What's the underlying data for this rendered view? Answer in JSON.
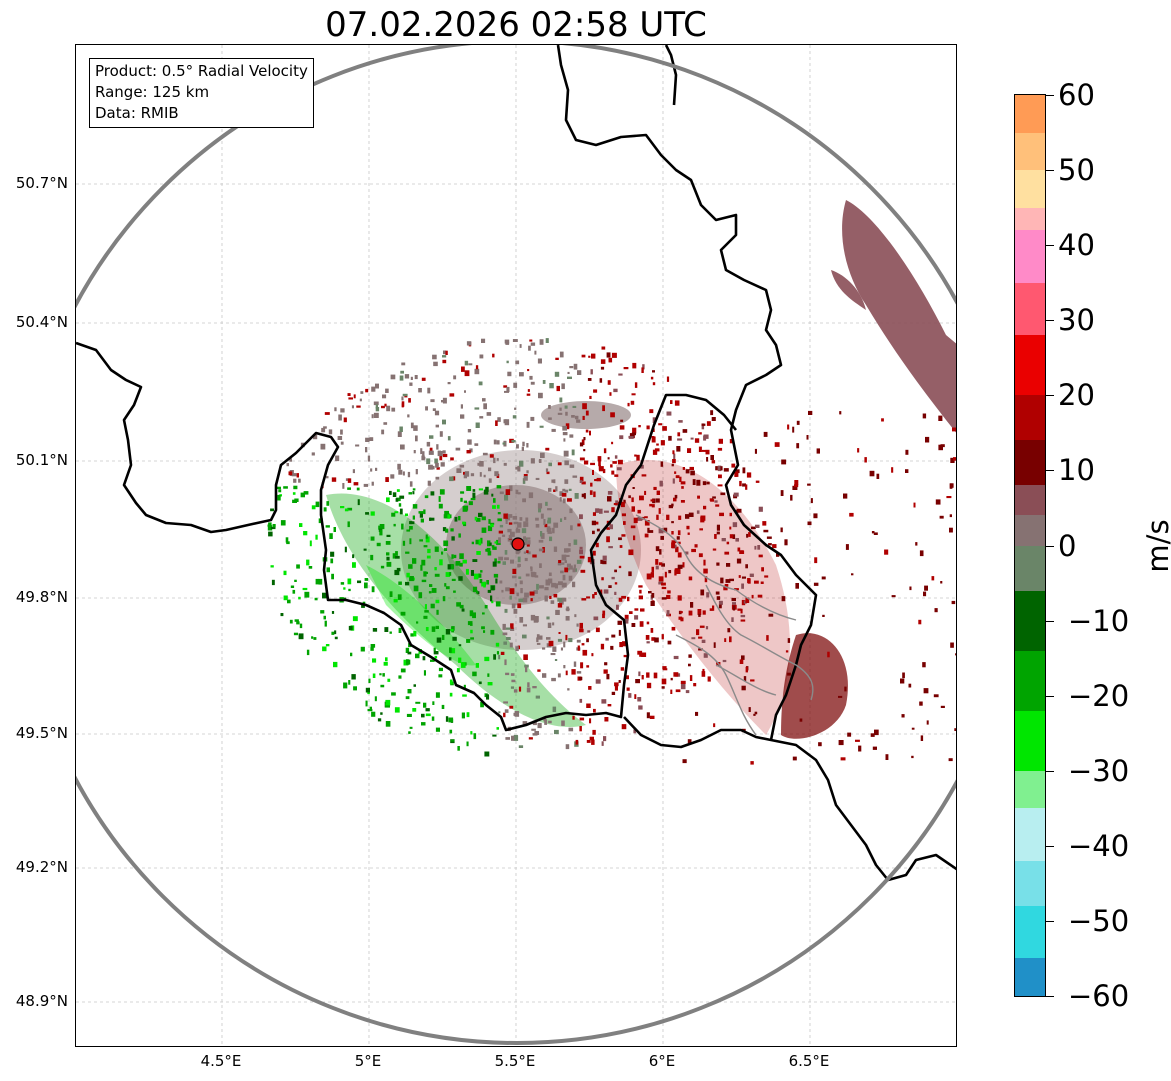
{
  "title": "07.02.2026 02:58 UTC",
  "info": {
    "product": "Product: 0.5° Radial Velocity",
    "range": "Range: 125 km",
    "source": "Data: RMIB"
  },
  "map": {
    "lat_ticks": [
      "50.7°N",
      "50.4°N",
      "50.1°N",
      "49.8°N",
      "49.5°N",
      "49.2°N",
      "48.9°N"
    ],
    "lon_ticks": [
      "4.5°E",
      "5°E",
      "5.5°E",
      "6°E",
      "6.5°E"
    ],
    "radar_site_color": "#e01010",
    "range_ring_color": "#808080",
    "border_color": "#000000"
  },
  "colorbar": {
    "unit": "m/s",
    "ticks": [
      "60",
      "50",
      "40",
      "30",
      "20",
      "10",
      "0",
      "−10",
      "−20",
      "−30",
      "−40",
      "−50",
      "−60"
    ],
    "range": [
      -60,
      60
    ],
    "colors": [
      {
        "from": 55,
        "to": 60,
        "color": "#ff9b55"
      },
      {
        "from": 50,
        "to": 55,
        "color": "#ffc07a"
      },
      {
        "from": 45,
        "to": 50,
        "color": "#ffe0a0"
      },
      {
        "from": 42,
        "to": 45,
        "color": "#ffb6b6"
      },
      {
        "from": 35,
        "to": 42,
        "color": "#ff8ac8"
      },
      {
        "from": 28,
        "to": 35,
        "color": "#ff5870"
      },
      {
        "from": 20,
        "to": 28,
        "color": "#ea0000"
      },
      {
        "from": 14,
        "to": 20,
        "color": "#b00000"
      },
      {
        "from": 8,
        "to": 14,
        "color": "#780000"
      },
      {
        "from": 4,
        "to": 8,
        "color": "#8a4e56"
      },
      {
        "from": 0,
        "to": 4,
        "color": "#867272"
      },
      {
        "from": -6,
        "to": 0,
        "color": "#6a8568"
      },
      {
        "from": -14,
        "to": -6,
        "color": "#006400"
      },
      {
        "from": -22,
        "to": -14,
        "color": "#00a400"
      },
      {
        "from": -30,
        "to": -22,
        "color": "#00e600"
      },
      {
        "from": -35,
        "to": -30,
        "color": "#80f090"
      },
      {
        "from": -42,
        "to": -35,
        "color": "#b8eef0"
      },
      {
        "from": -48,
        "to": -42,
        "color": "#78e0e8"
      },
      {
        "from": -55,
        "to": -48,
        "color": "#30d8e0"
      },
      {
        "from": -60,
        "to": -55,
        "color": "#2090c8"
      }
    ]
  }
}
